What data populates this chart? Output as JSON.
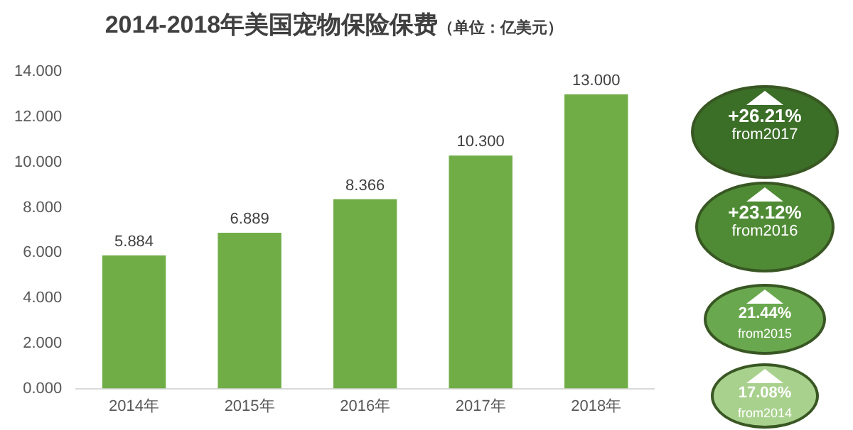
{
  "chart_data": {
    "type": "bar",
    "title": "2014-2018年美国宠物保险保费",
    "subtitle": "（单位：亿美元）",
    "categories": [
      "2014年",
      "2015年",
      "2016年",
      "2017年",
      "2018年"
    ],
    "values": [
      5.884,
      6.889,
      8.366,
      10.3,
      13.0
    ],
    "color": "#70ad47",
    "ylim": [
      0,
      14
    ],
    "yticks": [
      {
        "value": 0,
        "label": "0.000"
      },
      {
        "value": 2,
        "label": "2.000"
      },
      {
        "value": 4,
        "label": "4.000"
      },
      {
        "value": 6,
        "label": "6.000"
      },
      {
        "value": 8,
        "label": "8.000"
      },
      {
        "value": 10,
        "label": "10.000"
      },
      {
        "value": 12,
        "label": "12.000"
      },
      {
        "value": 14,
        "label": "14.000"
      }
    ],
    "value_labels": [
      "5.884",
      "6.889",
      "8.366",
      "10.300",
      "13.000"
    ],
    "grid": false,
    "annotations": [
      "+26.21%",
      "from2017",
      "+23.12%",
      "from2016",
      "21.44%",
      "from2015",
      "17.08%",
      "from2014"
    ]
  }
}
